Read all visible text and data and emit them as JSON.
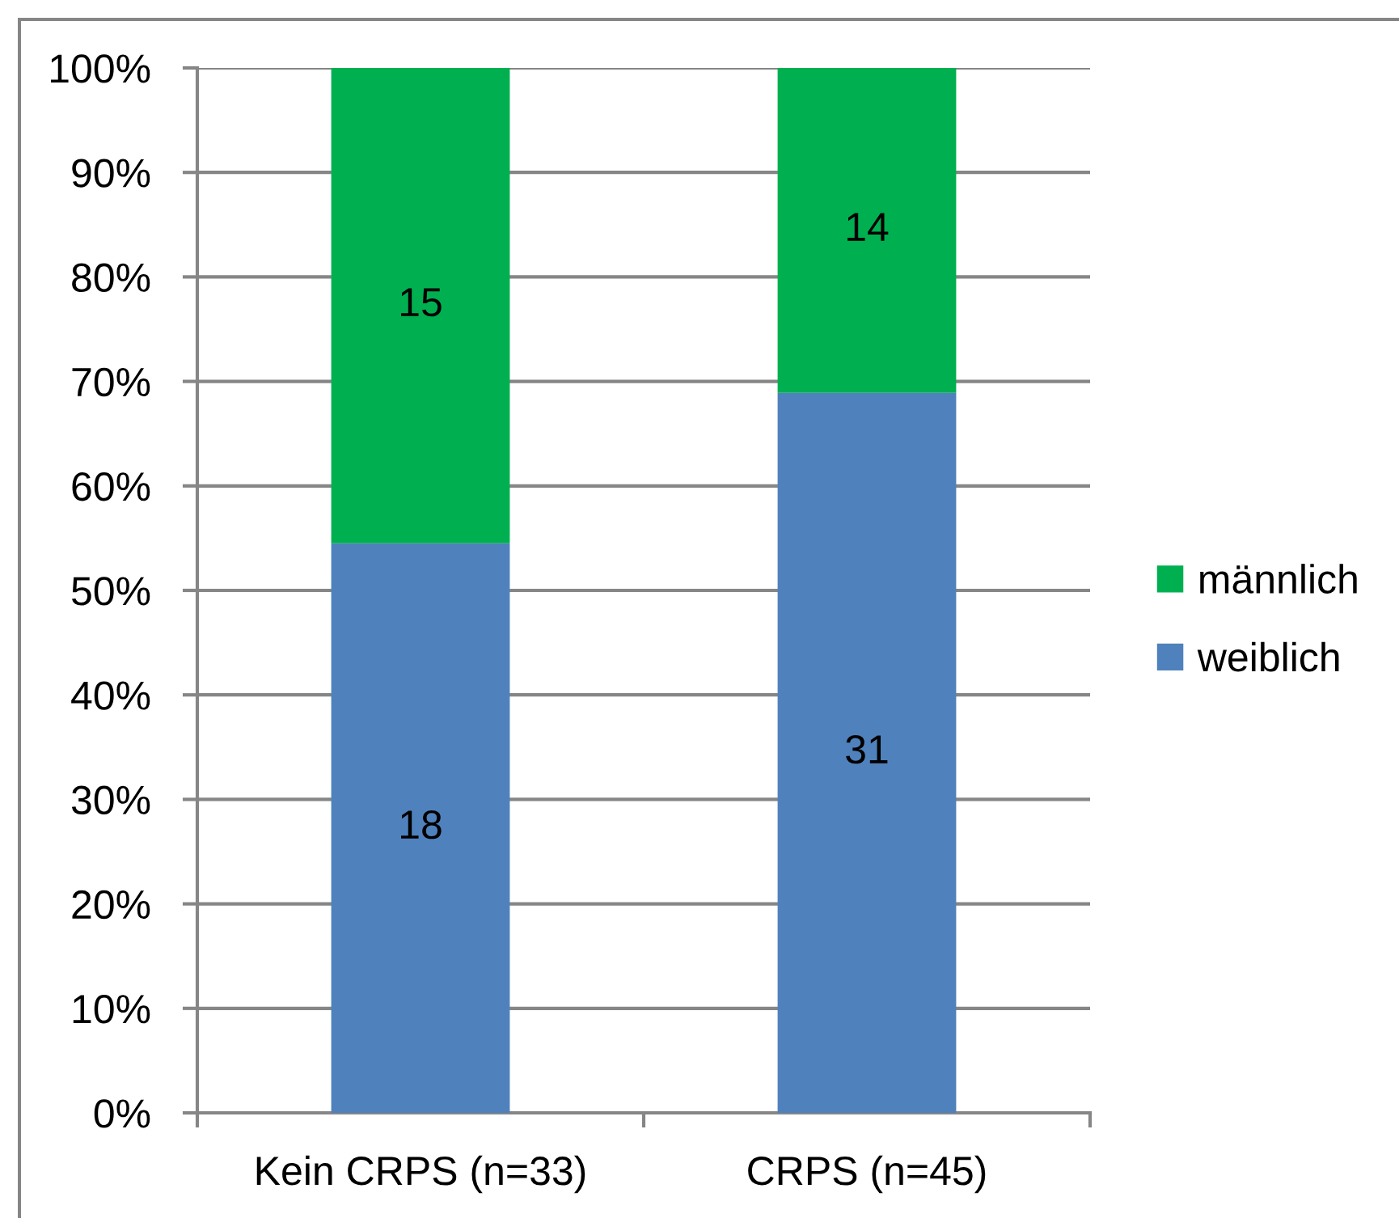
{
  "chart_data": {
    "type": "bar",
    "stacked": true,
    "categories": [
      "Kein CRPS (n=33)",
      "CRPS (n=45)"
    ],
    "series": [
      {
        "name": "weiblich",
        "color": "#4f81bd",
        "values": [
          54.5,
          68.9
        ]
      },
      {
        "name": "männlich",
        "color": "#00b050",
        "values": [
          45.5,
          31.1
        ]
      }
    ],
    "annotations": [
      "18",
      "31",
      "15",
      "14"
    ],
    "ylim": [
      0,
      100
    ],
    "yticks": [
      {
        "value": 0,
        "label": "0%"
      },
      {
        "value": 10,
        "label": "10%"
      },
      {
        "value": 20,
        "label": "20%"
      },
      {
        "value": 30,
        "label": "30%"
      },
      {
        "value": 40,
        "label": "40%"
      },
      {
        "value": 50,
        "label": "50%"
      },
      {
        "value": 60,
        "label": "60%"
      },
      {
        "value": 70,
        "label": "70%"
      },
      {
        "value": 80,
        "label": "80%"
      },
      {
        "value": 90,
        "label": "90%"
      },
      {
        "value": 100,
        "label": "100%"
      }
    ],
    "grid": "y",
    "legend": "right"
  }
}
